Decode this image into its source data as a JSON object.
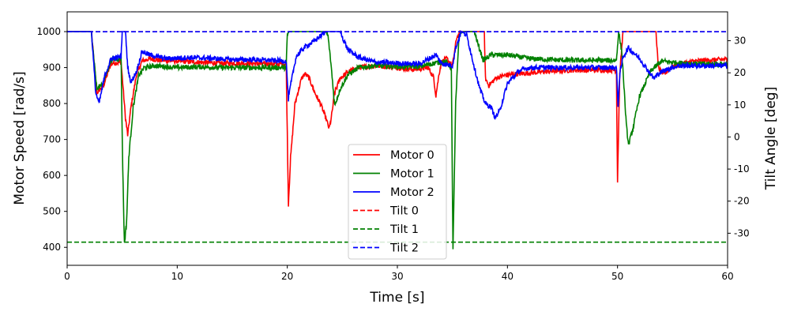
{
  "chart_data": {
    "type": "line",
    "title": "",
    "xlabel": "Time [s]",
    "ylabel_left": "Motor Speed [rad/s]",
    "ylabel_right": "Tilt Angle [deg]",
    "xlim": [
      0,
      60
    ],
    "ylim_left": [
      350,
      1055
    ],
    "ylim_right": [
      -40,
      39
    ],
    "x_ticks": [
      0,
      10,
      20,
      30,
      40,
      50,
      60
    ],
    "y_ticks_left": [
      400,
      500,
      600,
      700,
      800,
      900,
      1000
    ],
    "y_ticks_right": [
      -30,
      -20,
      -10,
      0,
      10,
      20,
      30
    ],
    "grid": false,
    "legend_position": "lower-center",
    "series": [
      {
        "name": "Motor 0",
        "axis": "left",
        "color": "#ff0000",
        "style": "solid",
        "points": [
          [
            0,
            1000
          ],
          [
            2.2,
            1000
          ],
          [
            2.7,
            830
          ],
          [
            3.3,
            850
          ],
          [
            4,
            912
          ],
          [
            4.9,
            915
          ],
          [
            5.3,
            760
          ],
          [
            5.5,
            712
          ],
          [
            5.8,
            790
          ],
          [
            6.3,
            880
          ],
          [
            6.8,
            918
          ],
          [
            7.5,
            925
          ],
          [
            8.5,
            920
          ],
          [
            10,
            918
          ],
          [
            12,
            915
          ],
          [
            14,
            912
          ],
          [
            16,
            912
          ],
          [
            18,
            910
          ],
          [
            19.9,
            910
          ],
          [
            20.1,
            520
          ],
          [
            20.3,
            650
          ],
          [
            20.7,
            800
          ],
          [
            21.3,
            870
          ],
          [
            21.6,
            883
          ],
          [
            22,
            870
          ],
          [
            22.5,
            830
          ],
          [
            23,
            800
          ],
          [
            23.5,
            760
          ],
          [
            23.8,
            730
          ],
          [
            24,
            760
          ],
          [
            24.3,
            830
          ],
          [
            24.8,
            870
          ],
          [
            25.5,
            888
          ],
          [
            26.5,
            900
          ],
          [
            28,
            905
          ],
          [
            30,
            900
          ],
          [
            31.5,
            895
          ],
          [
            32.8,
            900
          ],
          [
            33.3,
            872
          ],
          [
            33.5,
            822
          ],
          [
            33.8,
            885
          ],
          [
            34,
            915
          ],
          [
            34.5,
            925
          ],
          [
            35,
            905
          ],
          [
            35.4,
            985
          ],
          [
            35.8,
            1000
          ],
          [
            36.5,
            1000
          ],
          [
            37.9,
            1000
          ],
          [
            38,
            870
          ],
          [
            38.3,
            850
          ],
          [
            39,
            872
          ],
          [
            40,
            880
          ],
          [
            42,
            885
          ],
          [
            44,
            890
          ],
          [
            46,
            893
          ],
          [
            48,
            893
          ],
          [
            49.9,
            893
          ],
          [
            50,
            582
          ],
          [
            50.2,
            880
          ],
          [
            50.5,
            1000
          ],
          [
            51,
            1000
          ],
          [
            53.5,
            1000
          ],
          [
            53.7,
            900
          ],
          [
            54.2,
            880
          ],
          [
            55,
            905
          ],
          [
            57,
            918
          ],
          [
            60,
            923
          ]
        ]
      },
      {
        "name": "Motor 1",
        "axis": "left",
        "color": "#008000",
        "style": "solid",
        "points": [
          [
            0,
            1000
          ],
          [
            2.2,
            1000
          ],
          [
            2.7,
            840
          ],
          [
            3.3,
            860
          ],
          [
            4,
            922
          ],
          [
            4.9,
            925
          ],
          [
            5.05,
            620
          ],
          [
            5.2,
            410
          ],
          [
            5.4,
            470
          ],
          [
            5.6,
            650
          ],
          [
            6,
            790
          ],
          [
            6.5,
            878
          ],
          [
            7,
            900
          ],
          [
            8,
            905
          ],
          [
            10,
            900
          ],
          [
            12,
            902
          ],
          [
            14,
            900
          ],
          [
            16,
            900
          ],
          [
            18,
            900
          ],
          [
            19.9,
            900
          ],
          [
            20,
            990
          ],
          [
            20.15,
            1000
          ],
          [
            23.5,
            1000
          ],
          [
            23.7,
            988
          ],
          [
            24,
            900
          ],
          [
            24.3,
            795
          ],
          [
            24.8,
            840
          ],
          [
            25.5,
            880
          ],
          [
            26.5,
            900
          ],
          [
            28,
            905
          ],
          [
            30,
            903
          ],
          [
            32,
            903
          ],
          [
            33.8,
            915
          ],
          [
            34.5,
            915
          ],
          [
            34.9,
            898
          ],
          [
            35.05,
            400
          ],
          [
            35.3,
            800
          ],
          [
            35.6,
            990
          ],
          [
            36,
            1000
          ],
          [
            37,
            1000
          ],
          [
            37.3,
            968
          ],
          [
            37.8,
            920
          ],
          [
            38.5,
            935
          ],
          [
            40,
            935
          ],
          [
            42,
            925
          ],
          [
            44,
            922
          ],
          [
            46,
            920
          ],
          [
            48,
            920
          ],
          [
            49.9,
            920
          ],
          [
            50.1,
            1000
          ],
          [
            50.4,
            940
          ],
          [
            50.8,
            740
          ],
          [
            51,
            685
          ],
          [
            51.4,
            730
          ],
          [
            52,
            820
          ],
          [
            53,
            890
          ],
          [
            54,
            918
          ],
          [
            55.5,
            913
          ],
          [
            57.5,
            910
          ],
          [
            60,
            910
          ]
        ]
      },
      {
        "name": "Motor 2",
        "axis": "left",
        "color": "#0000ff",
        "style": "solid",
        "points": [
          [
            0,
            1000
          ],
          [
            2.2,
            1000
          ],
          [
            2.6,
            830
          ],
          [
            2.9,
            800
          ],
          [
            3.4,
            875
          ],
          [
            4,
            925
          ],
          [
            4.9,
            930
          ],
          [
            5,
            1000
          ],
          [
            5.3,
            1000
          ],
          [
            5.5,
            900
          ],
          [
            5.8,
            858
          ],
          [
            6.3,
            890
          ],
          [
            6.8,
            945
          ],
          [
            7.5,
            935
          ],
          [
            9,
            925
          ],
          [
            11,
            928
          ],
          [
            13,
            926
          ],
          [
            15,
            922
          ],
          [
            17,
            922
          ],
          [
            19.9,
            918
          ],
          [
            20.1,
            812
          ],
          [
            20.3,
            850
          ],
          [
            20.8,
            930
          ],
          [
            21.5,
            955
          ],
          [
            22.5,
            975
          ],
          [
            23.5,
            1000
          ],
          [
            24.8,
            1000
          ],
          [
            25.5,
            950
          ],
          [
            26.5,
            928
          ],
          [
            28,
            915
          ],
          [
            30,
            912
          ],
          [
            32,
            910
          ],
          [
            33.5,
            935
          ],
          [
            34,
            912
          ],
          [
            35,
            905
          ],
          [
            35.3,
            955
          ],
          [
            35.8,
            1000
          ],
          [
            36.3,
            990
          ],
          [
            37,
            900
          ],
          [
            37.5,
            840
          ],
          [
            38,
            800
          ],
          [
            38.5,
            790
          ],
          [
            38.9,
            760
          ],
          [
            39.3,
            780
          ],
          [
            40,
            855
          ],
          [
            41,
            890
          ],
          [
            42,
            900
          ],
          [
            44,
            900
          ],
          [
            46,
            900
          ],
          [
            48,
            900
          ],
          [
            49.9,
            900
          ],
          [
            50.05,
            795
          ],
          [
            50.2,
            880
          ],
          [
            50.5,
            930
          ],
          [
            51,
            955
          ],
          [
            52,
            925
          ],
          [
            53.3,
            870
          ],
          [
            53.8,
            885
          ],
          [
            54.5,
            895
          ],
          [
            55.5,
            905
          ],
          [
            57.5,
            905
          ],
          [
            60,
            905
          ]
        ]
      },
      {
        "name": "Tilt 0",
        "axis": "right",
        "color": "#ff0000",
        "style": "dashed",
        "points": [
          [
            0,
            32.8
          ],
          [
            60,
            32.8
          ]
        ]
      },
      {
        "name": "Tilt 1",
        "axis": "right",
        "color": "#008000",
        "style": "dashed",
        "points": [
          [
            0,
            -32.8
          ],
          [
            60,
            -32.8
          ]
        ]
      },
      {
        "name": "Tilt 2",
        "axis": "right",
        "color": "#0000ff",
        "style": "dashed",
        "points": [
          [
            0,
            32.8
          ],
          [
            60,
            32.8
          ]
        ]
      }
    ]
  }
}
